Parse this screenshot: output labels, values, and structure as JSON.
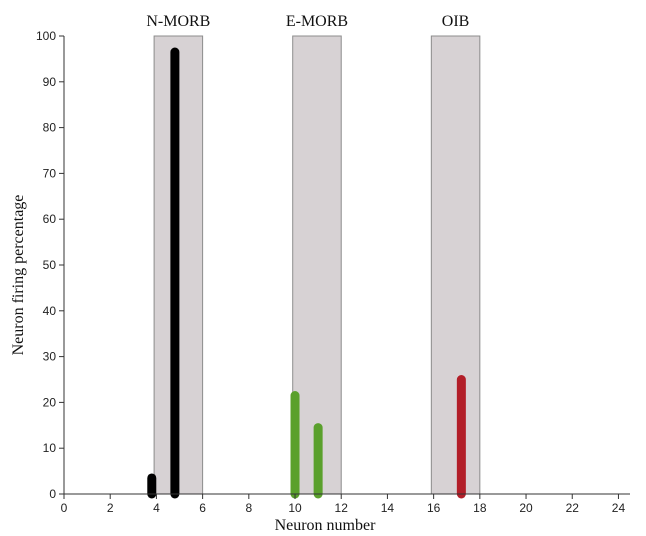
{
  "chart_data": {
    "type": "bar",
    "title": "",
    "xlabel": "Neuron number",
    "ylabel": "Neuron firing percentage",
    "xlim": [
      0,
      24.5
    ],
    "ylim": [
      0,
      100
    ],
    "x_ticks": [
      0,
      2,
      4,
      6,
      8,
      10,
      12,
      14,
      16,
      18,
      20,
      22,
      24
    ],
    "y_ticks": [
      0,
      10,
      20,
      30,
      40,
      50,
      60,
      70,
      80,
      90,
      100
    ],
    "grid": false,
    "regions": [
      {
        "label": "N-MORB",
        "x_start": 3.9,
        "x_end": 6.0,
        "color": "#d7d2d4"
      },
      {
        "label": "E-MORB",
        "x_start": 9.9,
        "x_end": 12.0,
        "color": "#d7d2d4"
      },
      {
        "label": "OIB",
        "x_start": 15.9,
        "x_end": 18.0,
        "color": "#d7d2d4"
      }
    ],
    "bars": [
      {
        "x": 3.8,
        "value": 3.5,
        "color": "#000000"
      },
      {
        "x": 4.8,
        "value": 96.5,
        "color": "#000000"
      },
      {
        "x": 10.0,
        "value": 21.5,
        "color": "#5aa02c"
      },
      {
        "x": 11.0,
        "value": 14.5,
        "color": "#5aa02c"
      },
      {
        "x": 17.2,
        "value": 25.0,
        "color": "#b21e28"
      }
    ]
  }
}
